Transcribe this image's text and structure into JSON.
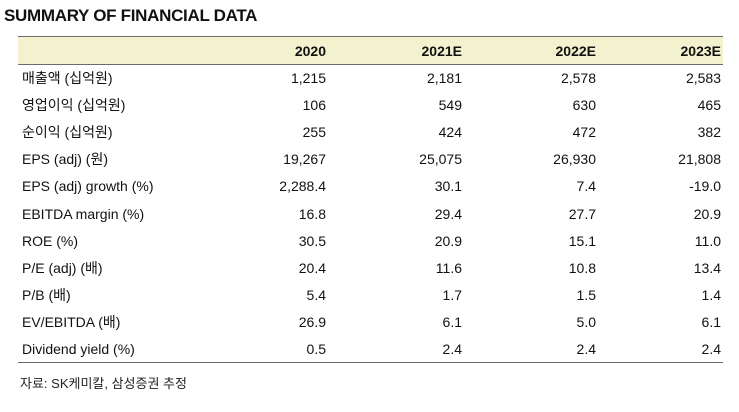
{
  "title": "SUMMARY OF FINANCIAL DATA",
  "table": {
    "columns": [
      "",
      "2020",
      "2021E",
      "2022E",
      "2023E"
    ],
    "rows": [
      {
        "label": "매출액 (십억원)",
        "values": [
          "1,215",
          "2,181",
          "2,578",
          "2,583"
        ]
      },
      {
        "label": "영업이익 (십억원)",
        "values": [
          "106",
          "549",
          "630",
          "465"
        ]
      },
      {
        "label": "순이익 (십억원)",
        "values": [
          "255",
          "424",
          "472",
          "382"
        ]
      },
      {
        "label": "EPS (adj) (원)",
        "values": [
          "19,267",
          "25,075",
          "26,930",
          "21,808"
        ]
      },
      {
        "label": "EPS (adj) growth (%)",
        "values": [
          "2,288.4",
          "30.1",
          "7.4",
          "-19.0"
        ]
      },
      {
        "label": "EBITDA margin (%)",
        "values": [
          "16.8",
          "29.4",
          "27.7",
          "20.9"
        ]
      },
      {
        "label": "ROE (%)",
        "values": [
          "30.5",
          "20.9",
          "15.1",
          "11.0"
        ]
      },
      {
        "label": "P/E (adj) (배)",
        "values": [
          "20.4",
          "11.6",
          "10.8",
          "13.4"
        ]
      },
      {
        "label": "P/B (배)",
        "values": [
          "5.4",
          "1.7",
          "1.5",
          "1.4"
        ]
      },
      {
        "label": "EV/EBITDA (배)",
        "values": [
          "26.9",
          "6.1",
          "5.0",
          "6.1"
        ]
      },
      {
        "label": "Dividend yield (%)",
        "values": [
          "0.5",
          "2.4",
          "2.4",
          "2.4"
        ]
      }
    ]
  },
  "source": "자료: SK케미칼, 삼성증권 추정",
  "colors": {
    "header_background": "#f3f2ce",
    "rule": "#6b6b6b",
    "text": "#111111"
  }
}
